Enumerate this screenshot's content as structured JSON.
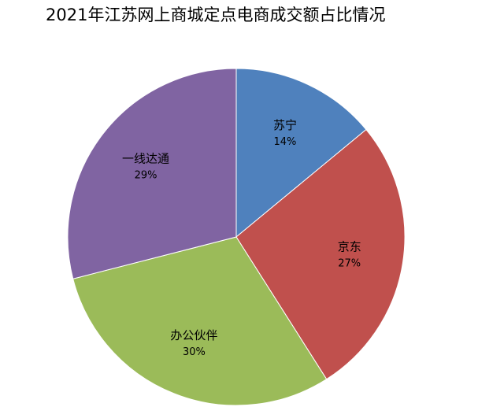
{
  "chart_data": {
    "type": "pie",
    "title": "2021年江苏网上商城定点电商成交额占比情况",
    "categories": [
      "苏宁",
      "京东",
      "办公伙伴",
      "一线达通"
    ],
    "values": [
      14,
      27,
      30,
      29
    ],
    "value_labels": [
      "14%",
      "27%",
      "30%",
      "29%"
    ],
    "colors": [
      "#4f81bd",
      "#c0504d",
      "#9bbb59",
      "#8064a2"
    ]
  }
}
